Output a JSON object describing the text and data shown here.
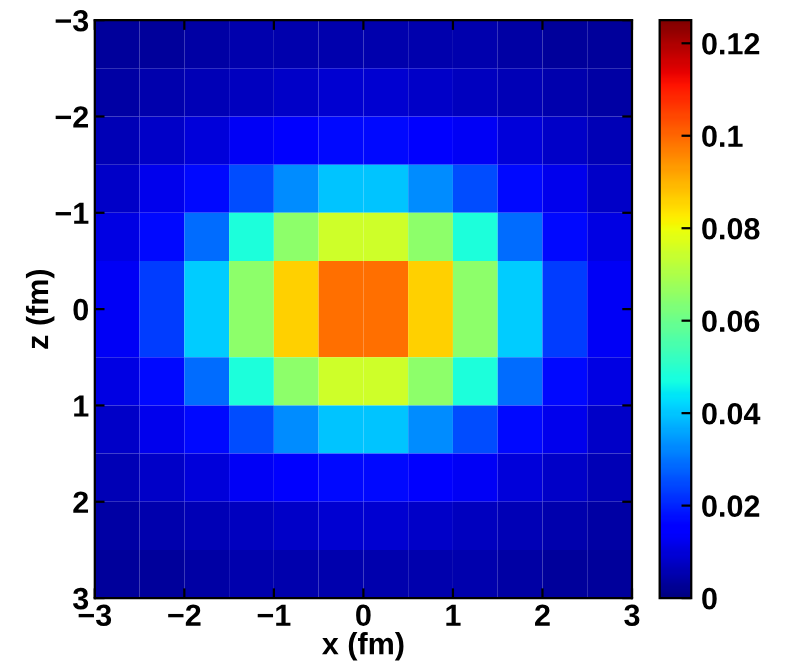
{
  "chart_data": {
    "type": "heatmap",
    "xlabel": "x (fm)",
    "ylabel": "z (fm)",
    "x": [
      -2.75,
      -2.25,
      -1.75,
      -1.25,
      -0.75,
      -0.25,
      0.25,
      0.75,
      1.25,
      1.75,
      2.25,
      2.75
    ],
    "cells": [
      [
        0.003,
        0.003,
        0.004,
        0.005,
        0.005,
        0.005,
        0.005,
        0.005,
        0.005,
        0.004,
        0.003,
        0.003
      ],
      [
        0.004,
        0.005,
        0.006,
        0.007,
        0.008,
        0.009,
        0.009,
        0.008,
        0.007,
        0.006,
        0.005,
        0.004
      ],
      [
        0.006,
        0.008,
        0.01,
        0.013,
        0.015,
        0.017,
        0.017,
        0.015,
        0.013,
        0.01,
        0.008,
        0.006
      ],
      [
        0.008,
        0.012,
        0.017,
        0.025,
        0.033,
        0.04,
        0.04,
        0.033,
        0.025,
        0.017,
        0.012,
        0.008
      ],
      [
        0.011,
        0.017,
        0.029,
        0.048,
        0.065,
        0.075,
        0.075,
        0.065,
        0.048,
        0.029,
        0.017,
        0.011
      ],
      [
        0.013,
        0.023,
        0.041,
        0.065,
        0.086,
        0.099,
        0.099,
        0.086,
        0.065,
        0.041,
        0.023,
        0.013
      ],
      [
        0.013,
        0.023,
        0.041,
        0.065,
        0.086,
        0.099,
        0.099,
        0.086,
        0.065,
        0.041,
        0.023,
        0.013
      ],
      [
        0.011,
        0.017,
        0.029,
        0.048,
        0.065,
        0.075,
        0.075,
        0.065,
        0.048,
        0.029,
        0.017,
        0.011
      ],
      [
        0.008,
        0.012,
        0.017,
        0.025,
        0.033,
        0.04,
        0.04,
        0.033,
        0.025,
        0.017,
        0.012,
        0.008
      ],
      [
        0.006,
        0.008,
        0.01,
        0.013,
        0.015,
        0.017,
        0.017,
        0.015,
        0.013,
        0.01,
        0.008,
        0.006
      ],
      [
        0.004,
        0.005,
        0.006,
        0.007,
        0.008,
        0.009,
        0.009,
        0.008,
        0.007,
        0.006,
        0.005,
        0.004
      ],
      [
        0.003,
        0.003,
        0.004,
        0.005,
        0.005,
        0.005,
        0.005,
        0.005,
        0.005,
        0.004,
        0.003,
        0.003
      ]
    ],
    "xlim": [
      -3,
      3
    ],
    "ylim": [
      3,
      -3
    ],
    "xticks": [
      {
        "value": -3,
        "label": "−3"
      },
      {
        "value": -2,
        "label": "−2"
      },
      {
        "value": -1,
        "label": "−1"
      },
      0,
      1,
      2,
      3
    ],
    "yticks": [
      {
        "value": -3,
        "label": "−3"
      },
      {
        "value": -2,
        "label": "−2"
      },
      {
        "value": -1,
        "label": "−1"
      },
      0,
      1,
      2,
      3
    ],
    "clim": [
      0,
      0.125
    ],
    "cticks": [
      0,
      0.02,
      0.04,
      0.06,
      0.08,
      0.1,
      0.12
    ]
  }
}
